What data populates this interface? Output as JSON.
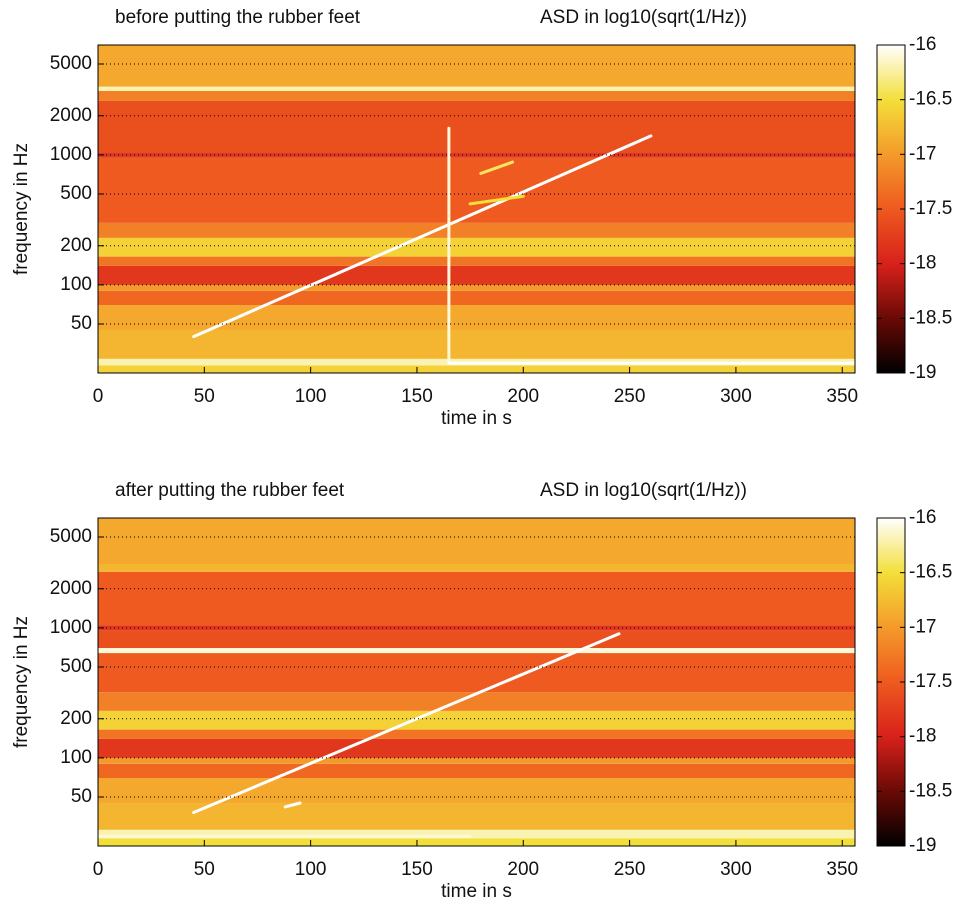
{
  "chart_data": [
    {
      "type": "spectrogram",
      "title": "before putting the rubber feet",
      "colorbar_label": "ASD in log10(sqrt(1/Hz))",
      "xlabel": "time in s",
      "ylabel": "frequency in Hz",
      "xlim": [
        0,
        356
      ],
      "xticks": [
        0,
        50,
        100,
        150,
        200,
        250,
        300,
        350
      ],
      "yscale": "log",
      "ylim": [
        21,
        7000
      ],
      "yticks": [
        50,
        100,
        200,
        500,
        1000,
        2000,
        5000
      ],
      "grid": true,
      "clim": [
        -19,
        -16
      ],
      "cticks": [
        -16,
        -16.5,
        -17,
        -17.5,
        -18,
        -18.5,
        -19
      ],
      "colormap": [
        {
          "value": -19,
          "color": "#000000"
        },
        {
          "value": -18.5,
          "color": "#6a0a06"
        },
        {
          "value": -18,
          "color": "#d8211b"
        },
        {
          "value": -17.5,
          "color": "#ee5a1f"
        },
        {
          "value": -17,
          "color": "#f49a2a"
        },
        {
          "value": -16.5,
          "color": "#f3df3a"
        },
        {
          "value": -16,
          "color": "#ffffff"
        }
      ],
      "bands": [
        {
          "freq": [
            21,
            24
          ],
          "level": -16.6
        },
        {
          "freq": [
            24,
            27
          ],
          "level": -16.2
        },
        {
          "freq": [
            27,
            45
          ],
          "level": -16.8
        },
        {
          "freq": [
            45,
            70
          ],
          "level": -16.9
        },
        {
          "freq": [
            70,
            90
          ],
          "level": -17.4
        },
        {
          "freq": [
            90,
            100
          ],
          "level": -17
        },
        {
          "freq": [
            100,
            140
          ],
          "level": -17.8
        },
        {
          "freq": [
            140,
            165
          ],
          "level": -17.3
        },
        {
          "freq": [
            165,
            230
          ],
          "level": -16.6
        },
        {
          "freq": [
            230,
            300
          ],
          "level": -17.2
        },
        {
          "freq": [
            300,
            950
          ],
          "level": -17.5
        },
        {
          "freq": [
            950,
            1050
          ],
          "level": -17.8
        },
        {
          "freq": [
            1050,
            2600
          ],
          "level": -17.6
        },
        {
          "freq": [
            2600,
            3100
          ],
          "level": -17.2
        },
        {
          "freq": [
            3100,
            3350
          ],
          "level": -16.2
        },
        {
          "freq": [
            3350,
            7000
          ],
          "level": -16.9
        }
      ],
      "features": [
        {
          "x": [
            45,
            260
          ],
          "y": [
            40,
            1400
          ],
          "level": -16
        },
        {
          "x": [
            165,
            165
          ],
          "y": [
            25,
            1600
          ],
          "level": -16.1
        },
        {
          "x": [
            165,
            356
          ],
          "y": [
            25,
            25
          ],
          "level": -16
        },
        {
          "x": [
            180,
            195
          ],
          "y": [
            720,
            880
          ],
          "level": -16.4
        },
        {
          "x": [
            175,
            200
          ],
          "y": [
            420,
            480
          ],
          "level": -16.5
        }
      ]
    },
    {
      "type": "spectrogram",
      "title": "after putting the rubber feet",
      "colorbar_label": "ASD in log10(sqrt(1/Hz))",
      "xlabel": "time in s",
      "ylabel": "frequency in Hz",
      "xlim": [
        0,
        356
      ],
      "xticks": [
        0,
        50,
        100,
        150,
        200,
        250,
        300,
        350
      ],
      "yscale": "log",
      "ylim": [
        21,
        7000
      ],
      "yticks": [
        50,
        100,
        200,
        500,
        1000,
        2000,
        5000
      ],
      "grid": true,
      "clim": [
        -19,
        -16
      ],
      "cticks": [
        -16,
        -16.5,
        -17,
        -17.5,
        -18,
        -18.5,
        -19
      ],
      "colormap": [
        {
          "value": -19,
          "color": "#000000"
        },
        {
          "value": -18.5,
          "color": "#6a0a06"
        },
        {
          "value": -18,
          "color": "#d8211b"
        },
        {
          "value": -17.5,
          "color": "#ee5a1f"
        },
        {
          "value": -17,
          "color": "#f49a2a"
        },
        {
          "value": -16.5,
          "color": "#f3df3a"
        },
        {
          "value": -16,
          "color": "#ffffff"
        }
      ],
      "bands": [
        {
          "freq": [
            21,
            24
          ],
          "level": -16.5
        },
        {
          "freq": [
            24,
            28
          ],
          "level": -16.2
        },
        {
          "freq": [
            28,
            45
          ],
          "level": -16.8
        },
        {
          "freq": [
            45,
            70
          ],
          "level": -16.9
        },
        {
          "freq": [
            70,
            90
          ],
          "level": -17.4
        },
        {
          "freq": [
            90,
            100
          ],
          "level": -17
        },
        {
          "freq": [
            100,
            140
          ],
          "level": -17.8
        },
        {
          "freq": [
            140,
            165
          ],
          "level": -17.3
        },
        {
          "freq": [
            165,
            230
          ],
          "level": -16.6
        },
        {
          "freq": [
            230,
            320
          ],
          "level": -17.2
        },
        {
          "freq": [
            320,
            640
          ],
          "level": -17.5
        },
        {
          "freq": [
            640,
            700
          ],
          "level": -16.1
        },
        {
          "freq": [
            700,
            950
          ],
          "level": -17.6
        },
        {
          "freq": [
            950,
            1050
          ],
          "level": -17.8
        },
        {
          "freq": [
            1050,
            2700
          ],
          "level": -17.5
        },
        {
          "freq": [
            2700,
            3100
          ],
          "level": -16.8
        },
        {
          "freq": [
            3100,
            7000
          ],
          "level": -16.9
        }
      ],
      "features": [
        {
          "x": [
            45,
            245
          ],
          "y": [
            38,
            900
          ],
          "level": -16
        },
        {
          "x": [
            0,
            175
          ],
          "y": [
            25,
            25
          ],
          "level": -16.1
        },
        {
          "x": [
            88,
            95
          ],
          "y": [
            42,
            45
          ],
          "level": -16
        }
      ]
    }
  ]
}
